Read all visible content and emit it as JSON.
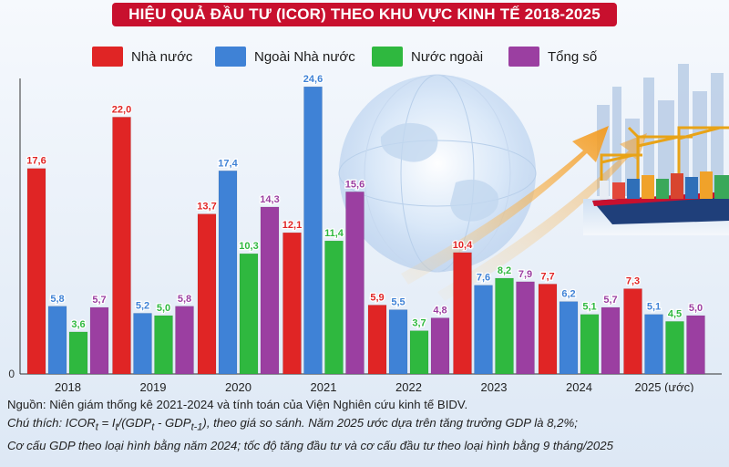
{
  "title": "HIỆU QUẢ ĐẦU TƯ (ICOR) THEO KHU VỰC KINH TẾ 2018-2025",
  "colors": {
    "title_bg": "#c8102e",
    "state": "#e02525",
    "non_state": "#3f82d6",
    "foreign": "#2fb83f",
    "total": "#9b3fa1"
  },
  "chart_data": {
    "type": "bar",
    "categories": [
      "2018",
      "2019",
      "2020",
      "2021",
      "2022",
      "2023",
      "2024",
      "2025 (ước)"
    ],
    "series": [
      {
        "name": "Nhà nước",
        "values": [
          17.6,
          22.0,
          13.7,
          12.1,
          5.9,
          10.4,
          7.7,
          7.3
        ]
      },
      {
        "name": "Ngoài Nhà nước",
        "values": [
          5.8,
          5.2,
          17.4,
          24.6,
          5.5,
          7.6,
          6.2,
          5.1
        ]
      },
      {
        "name": "Nước ngoài",
        "values": [
          3.6,
          5.0,
          10.3,
          11.4,
          3.7,
          8.2,
          5.1,
          4.5
        ]
      },
      {
        "name": "Tổng số",
        "values": [
          5.7,
          5.8,
          14.3,
          15.6,
          4.8,
          7.9,
          5.7,
          5.0
        ]
      }
    ],
    "y_tick_labels": [
      "0"
    ],
    "ylim": [
      0,
      25
    ],
    "grid": false,
    "legend_position": "top",
    "data_labels": true
  },
  "notes": {
    "source": "Nguồn: Niên giám thống kê 2021-2024 và tính toán của Viện Nghiên cứu kinh tế BIDV.",
    "formula_prefix": "Chú thích: ICOR",
    "formula_eq": " = I",
    "formula_gdp1": "/(GDP",
    "formula_minus": " - GDP",
    "formula_suffix": "), theo giá so sánh. Năm 2025 ước dựa trên tăng trưởng GDP là 8,2%;",
    "sub_t": "t",
    "sub_t1": "t-1",
    "line3": "Cơ cấu GDP theo loại hình bằng năm 2024; tốc độ tăng đầu tư và cơ cấu đầu tư theo loại hình bằng 9 tháng/2025"
  }
}
